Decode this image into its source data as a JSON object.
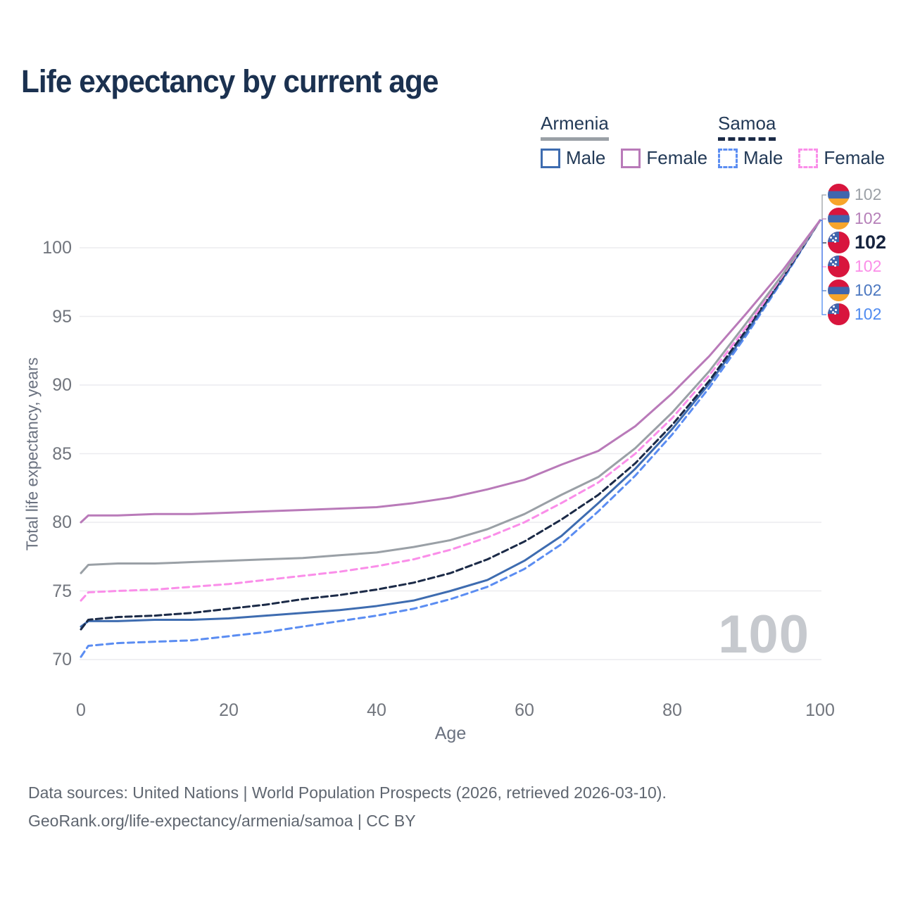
{
  "title": "Life expectancy by current age",
  "legend": {
    "groups": [
      {
        "label": "Armenia",
        "line_style": "solid",
        "underline_color": "#9aa0a6",
        "items": [
          {
            "label": "Male",
            "color": "#3e6cb0",
            "dashed": false
          },
          {
            "label": "Female",
            "color": "#b97ab9",
            "dashed": false
          }
        ]
      },
      {
        "label": "Samoa",
        "line_style": "dashed",
        "underline_color": "#1b2a47",
        "items": [
          {
            "label": "Male",
            "color": "#5b8df2",
            "dashed": true
          },
          {
            "label": "Female",
            "color": "#fa8ee9",
            "dashed": true
          }
        ]
      }
    ]
  },
  "chart_data": {
    "type": "line",
    "title": "Life expectancy by current age",
    "xlabel": "Age",
    "ylabel": "Total life expectancy, years",
    "xticks": [
      0,
      20,
      40,
      60,
      80,
      100
    ],
    "yticks": [
      70,
      75,
      80,
      85,
      90,
      95,
      100
    ],
    "xlim": [
      0,
      100
    ],
    "ylim": [
      69,
      103
    ],
    "grid": true,
    "legend_position": "top-right",
    "current_age_watermark": "100",
    "x": [
      0,
      1,
      5,
      10,
      15,
      20,
      25,
      30,
      35,
      40,
      45,
      50,
      55,
      60,
      65,
      70,
      75,
      80,
      85,
      90,
      95,
      100
    ],
    "series": [
      {
        "name": "Samoa Male",
        "country": "Samoa",
        "sex": "Male",
        "color": "#5b8df2",
        "dash": "9 6",
        "width": 3,
        "values": [
          70.2,
          71.0,
          71.2,
          71.3,
          71.4,
          71.7,
          72.0,
          72.4,
          72.8,
          73.2,
          73.7,
          74.4,
          75.3,
          76.6,
          78.4,
          80.8,
          83.4,
          86.4,
          89.8,
          93.6,
          97.7,
          102
        ]
      },
      {
        "name": "Armenia Male",
        "country": "Armenia",
        "sex": "Male",
        "color": "#3e6cb0",
        "dash": null,
        "width": 3,
        "values": [
          72.4,
          72.8,
          72.8,
          72.9,
          72.9,
          73.0,
          73.2,
          73.4,
          73.6,
          73.9,
          74.3,
          75.0,
          75.8,
          77.2,
          79.0,
          81.4,
          83.9,
          86.8,
          90.1,
          93.8,
          97.8,
          102
        ]
      },
      {
        "name": "Samoa",
        "country": "Samoa",
        "sex": "All",
        "color": "#1b2a47",
        "dash": "9 5",
        "width": 3,
        "values": [
          72.2,
          72.9,
          73.1,
          73.2,
          73.4,
          73.7,
          74.0,
          74.4,
          74.7,
          75.1,
          75.6,
          76.3,
          77.3,
          78.6,
          80.2,
          82.0,
          84.3,
          87.1,
          90.3,
          94.0,
          97.9,
          102
        ]
      },
      {
        "name": "Samoa Female",
        "country": "Samoa",
        "sex": "Female",
        "color": "#fa8ee9",
        "dash": "9 6",
        "width": 3,
        "values": [
          74.3,
          74.9,
          75.0,
          75.1,
          75.3,
          75.5,
          75.8,
          76.1,
          76.4,
          76.8,
          77.3,
          78.0,
          78.9,
          80.0,
          81.4,
          82.9,
          85.0,
          87.6,
          90.7,
          94.2,
          98.0,
          102
        ]
      },
      {
        "name": "Armenia",
        "country": "Armenia",
        "sex": "All",
        "color": "#9aa0a6",
        "dash": null,
        "width": 3,
        "values": [
          76.3,
          76.9,
          77.0,
          77.0,
          77.1,
          77.2,
          77.3,
          77.4,
          77.6,
          77.8,
          78.2,
          78.7,
          79.5,
          80.6,
          82.0,
          83.3,
          85.4,
          88.0,
          91.0,
          94.5,
          98.1,
          102
        ]
      },
      {
        "name": "Armenia Female",
        "country": "Armenia",
        "sex": "Female",
        "color": "#b97ab9",
        "dash": null,
        "width": 3,
        "values": [
          80.0,
          80.5,
          80.5,
          80.6,
          80.6,
          80.7,
          80.8,
          80.9,
          81.0,
          81.1,
          81.4,
          81.8,
          82.4,
          83.1,
          84.2,
          85.2,
          87.0,
          89.4,
          92.1,
          95.2,
          98.4,
          102
        ]
      }
    ],
    "endpoints": [
      {
        "country": "armenia",
        "series": "Armenia",
        "value": "102",
        "color": "#9ba0a6",
        "emphasis": false
      },
      {
        "country": "armenia",
        "series": "Armenia Female",
        "value": "102",
        "color": "#b57fb8",
        "emphasis": false
      },
      {
        "country": "samoa",
        "series": "Samoa",
        "value": "102",
        "color": "#16233e",
        "emphasis": true
      },
      {
        "country": "samoa",
        "series": "Samoa Female",
        "value": "102",
        "color": "#fb8ee8",
        "emphasis": false
      },
      {
        "country": "armenia",
        "series": "Armenia Male",
        "value": "102",
        "color": "#4b77c0",
        "emphasis": false
      },
      {
        "country": "samoa",
        "series": "Samoa Male",
        "value": "102",
        "color": "#4f8bf0",
        "emphasis": false
      }
    ]
  },
  "footer": {
    "line1": "Data sources: United Nations | World Population Prospects (2026, retrieved 2026-03-10).",
    "line2": "GeoRank.org/life-expectancy/armenia/samoa | CC BY"
  },
  "colors": {
    "title": "#1b3150",
    "axis_text": "#71757d",
    "grid": "#ececef",
    "watermark": "#c6c9ce",
    "footer_text": "#5f6670",
    "background": "#ffffff"
  }
}
